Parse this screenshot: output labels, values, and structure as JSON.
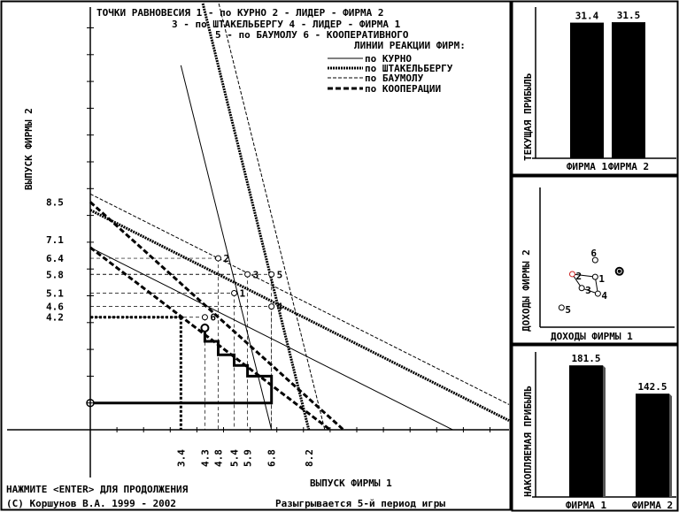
{
  "header": {
    "line1": "ТОЧКИ РАВНОВЕСИЯ 1 - по КУРНО 2 - ЛИДЕР - ФИРМА 2",
    "line2": "3 - по ШТАКЕЛЬБЕРГУ 4 - ЛИДЕР - ФИРМА 1",
    "line3": "5 - по БАУМОЛУ 6 - КООПЕРАТИВНОГО",
    "legend_title": "ЛИНИИ РЕАКЦИИ ФИРМ:"
  },
  "legend": {
    "cournot": "по КУРНО",
    "stackelberg": "по ШТАКЕЛЬБЕРГУ",
    "baumol": "по БАУМОЛУ",
    "cooperation": "по КООПЕРАЦИИ"
  },
  "footer": {
    "prompt": "НАЖМИТЕ <ENTER> ДЛЯ ПРОДОЛЖЕНИЯ",
    "copyright": "(C) Коршунов В.А. 1999 - 2002",
    "status": "Разыгрывается 5-й период игры"
  },
  "colors": {
    "background": "#ffffff",
    "ink": "#000000",
    "accent_point": "#cc2222"
  },
  "chart_data": [
    {
      "type": "line",
      "xlabel": "ВЫПУСК ФИРМЫ 1",
      "ylabel": "ВЫПУСК ФИРМЫ 2",
      "y_ticks": [
        "8.5",
        "7.1",
        "6.4",
        "5.8",
        "5.1",
        "4.6",
        "4.2"
      ],
      "x_ticks": [
        "3.4",
        "4.3",
        "4.8",
        "5.4",
        "5.9",
        "6.8",
        "8.2"
      ],
      "series": [
        {
          "name": "по КУРНО",
          "lines": [
            [
              [
                0,
                6.8
              ],
              [
                13.6,
                0
              ]
            ],
            [
              [
                3.4,
                13.6
              ],
              [
                6.8,
                0
              ]
            ]
          ]
        },
        {
          "name": "по ШТАКЕЛЬБЕРГУ",
          "lines": [
            [
              [
                0,
                8.2
              ],
              [
                16.4,
                0
              ]
            ],
            [
              [
                4.1,
                16.4
              ],
              [
                8.2,
                0
              ]
            ]
          ]
        },
        {
          "name": "по БАУМОЛУ",
          "lines": [
            [
              [
                0,
                8.8
              ],
              [
                17.6,
                0
              ]
            ],
            [
              [
                4.4,
                17.6
              ],
              [
                8.8,
                0
              ]
            ]
          ]
        },
        {
          "name": "по КООПЕРАЦИИ",
          "lines": [
            [
              [
                0,
                8.5
              ],
              [
                9.5,
                0
              ]
            ],
            [
              [
                0,
                6.8
              ],
              [
                9.0,
                0
              ]
            ]
          ]
        }
      ],
      "equilibrium_points": [
        {
          "label": "1",
          "x": 5.4,
          "y": 5.1
        },
        {
          "label": "2",
          "x": 4.8,
          "y": 6.4
        },
        {
          "label": "3",
          "x": 5.9,
          "y": 5.8
        },
        {
          "label": "4",
          "x": 6.8,
          "y": 4.6
        },
        {
          "label": "5",
          "x": 6.8,
          "y": 5.8
        },
        {
          "label": "6",
          "x": 4.3,
          "y": 4.2
        }
      ],
      "game_path": [
        [
          0,
          1.0
        ],
        [
          6.8,
          1.0
        ],
        [
          6.8,
          2.0
        ],
        [
          5.9,
          2.0
        ],
        [
          5.9,
          2.4
        ],
        [
          5.4,
          2.4
        ],
        [
          5.4,
          2.8
        ],
        [
          4.8,
          2.8
        ],
        [
          4.8,
          3.3
        ],
        [
          4.3,
          3.3
        ],
        [
          4.3,
          3.8
        ]
      ],
      "coop_levels": {
        "x": 3.4,
        "y": 4.2
      },
      "xlim": [
        0,
        15.5
      ],
      "ylim": [
        0,
        13.0
      ]
    },
    {
      "type": "bar",
      "ylabel": "ТЕКУЩАЯ ПРИБЫЛЬ",
      "categories": [
        "ФИРМА 1",
        "ФИРМА 2"
      ],
      "values": [
        31.4,
        31.5
      ],
      "value_labels": [
        "31.4",
        "31.5"
      ],
      "ylim": [
        0,
        35
      ]
    },
    {
      "type": "scatter",
      "xlabel": "ДОХОДЫ ФИРМЫ 1",
      "ylabel": "ДОХОДЫ ФИРМЫ 2",
      "points": [
        {
          "label": "1",
          "x": 41,
          "y": 36
        },
        {
          "label": "2",
          "x": 24,
          "y": 38
        },
        {
          "label": "3",
          "x": 31,
          "y": 28
        },
        {
          "label": "4",
          "x": 43,
          "y": 24
        },
        {
          "label": "5",
          "x": 16,
          "y": 14
        },
        {
          "label": "6",
          "x": 41,
          "y": 48
        },
        {
          "label": "",
          "x": 59,
          "y": 40
        }
      ],
      "xlim": [
        0,
        100
      ],
      "ylim": [
        0,
        100
      ]
    },
    {
      "type": "bar",
      "ylabel": "НАКОПЛЯЕМАЯ ПРИБЫЛЬ",
      "categories": [
        "ФИРМА 1",
        "ФИРМА 2"
      ],
      "values": [
        181.5,
        142.5
      ],
      "value_labels": [
        "181.5",
        "142.5"
      ],
      "ylim": [
        0,
        200
      ]
    }
  ]
}
